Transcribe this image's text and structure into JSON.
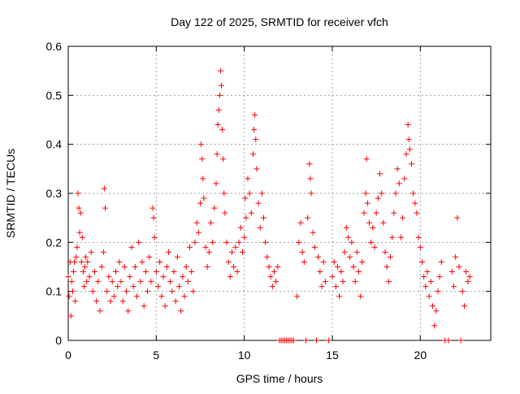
{
  "chart_data": {
    "type": "scatter",
    "title": "Day 122 of 2025, SRMTID for receiver vfch",
    "xlabel": "GPS time / hours",
    "ylabel": "SRMTID / TECUs",
    "xlim": [
      0,
      24
    ],
    "ylim": [
      0,
      0.6
    ],
    "xticks": [
      0,
      5,
      10,
      15,
      20
    ],
    "yticks": [
      0,
      0.1,
      0.2,
      0.3,
      0.4,
      0.5,
      0.6
    ],
    "grid": true,
    "marker": "+",
    "color": "#ff0000",
    "series": [
      {
        "name": "SRMTID",
        "points": [
          [
            0.0,
            0.13
          ],
          [
            0.05,
            0.09
          ],
          [
            0.1,
            0.16
          ],
          [
            0.15,
            0.05
          ],
          [
            0.2,
            0.12
          ],
          [
            0.25,
            0.1
          ],
          [
            0.3,
            0.14
          ],
          [
            0.35,
            0.16
          ],
          [
            0.4,
            0.08
          ],
          [
            0.45,
            0.17
          ],
          [
            0.5,
            0.19
          ],
          [
            0.55,
            0.3
          ],
          [
            0.6,
            0.27
          ],
          [
            0.65,
            0.22
          ],
          [
            0.7,
            0.26
          ],
          [
            0.75,
            0.16
          ],
          [
            0.8,
            0.21
          ],
          [
            0.85,
            0.14
          ],
          [
            0.9,
            0.11
          ],
          [
            0.95,
            0.15
          ],
          [
            1.0,
            0.17
          ],
          [
            1.05,
            0.12
          ],
          [
            1.1,
            0.16
          ],
          [
            1.2,
            0.13
          ],
          [
            1.3,
            0.18
          ],
          [
            1.4,
            0.1
          ],
          [
            1.5,
            0.14
          ],
          [
            1.6,
            0.08
          ],
          [
            1.7,
            0.12
          ],
          [
            1.8,
            0.06
          ],
          [
            1.9,
            0.15
          ],
          [
            2.0,
            0.18
          ],
          [
            2.05,
            0.31
          ],
          [
            2.1,
            0.27
          ],
          [
            2.2,
            0.1
          ],
          [
            2.3,
            0.13
          ],
          [
            2.4,
            0.08
          ],
          [
            2.5,
            0.12
          ],
          [
            2.6,
            0.09
          ],
          [
            2.7,
            0.14
          ],
          [
            2.8,
            0.11
          ],
          [
            2.9,
            0.16
          ],
          [
            3.0,
            0.12
          ],
          [
            3.1,
            0.08
          ],
          [
            3.2,
            0.15
          ],
          [
            3.3,
            0.1
          ],
          [
            3.4,
            0.06
          ],
          [
            3.5,
            0.13
          ],
          [
            3.6,
            0.19
          ],
          [
            3.7,
            0.11
          ],
          [
            3.8,
            0.15
          ],
          [
            3.9,
            0.09
          ],
          [
            4.0,
            0.2
          ],
          [
            4.1,
            0.12
          ],
          [
            4.2,
            0.16
          ],
          [
            4.3,
            0.07
          ],
          [
            4.4,
            0.14
          ],
          [
            4.5,
            0.1
          ],
          [
            4.6,
            0.17
          ],
          [
            4.7,
            0.12
          ],
          [
            4.8,
            0.27
          ],
          [
            4.85,
            0.25
          ],
          [
            4.9,
            0.21
          ],
          [
            5.0,
            0.14
          ],
          [
            5.1,
            0.11
          ],
          [
            5.2,
            0.16
          ],
          [
            5.3,
            0.09
          ],
          [
            5.4,
            0.13
          ],
          [
            5.5,
            0.07
          ],
          [
            5.6,
            0.15
          ],
          [
            5.7,
            0.18
          ],
          [
            5.8,
            0.12
          ],
          [
            5.9,
            0.1
          ],
          [
            6.0,
            0.14
          ],
          [
            6.1,
            0.08
          ],
          [
            6.2,
            0.17
          ],
          [
            6.3,
            0.11
          ],
          [
            6.4,
            0.06
          ],
          [
            6.5,
            0.13
          ],
          [
            6.6,
            0.09
          ],
          [
            6.7,
            0.15
          ],
          [
            6.8,
            0.12
          ],
          [
            6.9,
            0.19
          ],
          [
            7.0,
            0.14
          ],
          [
            7.1,
            0.1
          ],
          [
            7.2,
            0.2
          ],
          [
            7.3,
            0.24
          ],
          [
            7.4,
            0.22
          ],
          [
            7.5,
            0.28
          ],
          [
            7.55,
            0.4
          ],
          [
            7.6,
            0.37
          ],
          [
            7.65,
            0.33
          ],
          [
            7.7,
            0.29
          ],
          [
            7.8,
            0.19
          ],
          [
            7.9,
            0.15
          ],
          [
            8.0,
            0.18
          ],
          [
            8.1,
            0.24
          ],
          [
            8.2,
            0.2
          ],
          [
            8.3,
            0.27
          ],
          [
            8.4,
            0.32
          ],
          [
            8.45,
            0.38
          ],
          [
            8.5,
            0.44
          ],
          [
            8.55,
            0.47
          ],
          [
            8.6,
            0.5
          ],
          [
            8.65,
            0.55
          ],
          [
            8.7,
            0.52
          ],
          [
            8.75,
            0.43
          ],
          [
            8.8,
            0.37
          ],
          [
            8.85,
            0.3
          ],
          [
            8.9,
            0.26
          ],
          [
            9.0,
            0.2
          ],
          [
            9.1,
            0.16
          ],
          [
            9.2,
            0.13
          ],
          [
            9.3,
            0.18
          ],
          [
            9.4,
            0.15
          ],
          [
            9.5,
            0.19
          ],
          [
            9.6,
            0.14
          ],
          [
            9.7,
            0.2
          ],
          [
            9.8,
            0.23
          ],
          [
            9.9,
            0.18
          ],
          [
            10.0,
            0.21
          ],
          [
            10.05,
            0.29
          ],
          [
            10.1,
            0.25
          ],
          [
            10.2,
            0.33
          ],
          [
            10.3,
            0.3
          ],
          [
            10.4,
            0.26
          ],
          [
            10.5,
            0.38
          ],
          [
            10.55,
            0.43
          ],
          [
            10.6,
            0.46
          ],
          [
            10.65,
            0.41
          ],
          [
            10.7,
            0.35
          ],
          [
            10.8,
            0.28
          ],
          [
            10.9,
            0.23
          ],
          [
            11.0,
            0.3
          ],
          [
            11.1,
            0.25
          ],
          [
            11.2,
            0.2
          ],
          [
            11.3,
            0.17
          ],
          [
            11.4,
            0.15
          ],
          [
            11.5,
            0.13
          ],
          [
            11.6,
            0.11
          ],
          [
            11.7,
            0.14
          ],
          [
            11.8,
            0.12
          ],
          [
            11.9,
            0.15
          ],
          [
            12.0,
            0.0
          ],
          [
            12.1,
            0.0
          ],
          [
            12.2,
            0.0
          ],
          [
            12.3,
            0.0
          ],
          [
            12.4,
            0.0
          ],
          [
            12.5,
            0.0
          ],
          [
            12.6,
            0.0
          ],
          [
            12.7,
            0.0
          ],
          [
            12.8,
            0.0
          ],
          [
            13.0,
            0.09
          ],
          [
            13.1,
            0.2
          ],
          [
            13.2,
            0.24
          ],
          [
            13.3,
            0.18
          ],
          [
            13.4,
            0.16
          ],
          [
            13.5,
            0.0
          ],
          [
            13.6,
            0.25
          ],
          [
            13.7,
            0.36
          ],
          [
            13.75,
            0.33
          ],
          [
            13.8,
            0.3
          ],
          [
            13.9,
            0.22
          ],
          [
            14.0,
            0.19
          ],
          [
            14.1,
            0.0
          ],
          [
            14.2,
            0.17
          ],
          [
            14.3,
            0.14
          ],
          [
            14.4,
            0.11
          ],
          [
            14.5,
            0.16
          ],
          [
            14.6,
            0.12
          ],
          [
            14.8,
            0.0
          ],
          [
            15.0,
            0.13
          ],
          [
            15.1,
            0.16
          ],
          [
            15.2,
            0.11
          ],
          [
            15.3,
            0.15
          ],
          [
            15.4,
            0.09
          ],
          [
            15.5,
            0.14
          ],
          [
            15.6,
            0.12
          ],
          [
            15.7,
            0.18
          ],
          [
            15.8,
            0.23
          ],
          [
            15.9,
            0.21
          ],
          [
            16.0,
            0.17
          ],
          [
            16.1,
            0.2
          ],
          [
            16.2,
            0.15
          ],
          [
            16.3,
            0.12
          ],
          [
            16.4,
            0.18
          ],
          [
            16.5,
            0.14
          ],
          [
            16.6,
            0.09
          ],
          [
            16.7,
            0.16
          ],
          [
            16.8,
            0.26
          ],
          [
            16.9,
            0.3
          ],
          [
            16.95,
            0.37
          ],
          [
            17.0,
            0.28
          ],
          [
            17.1,
            0.24
          ],
          [
            17.2,
            0.2
          ],
          [
            17.3,
            0.23
          ],
          [
            17.4,
            0.19
          ],
          [
            17.5,
            0.26
          ],
          [
            17.6,
            0.29
          ],
          [
            17.7,
            0.34
          ],
          [
            17.8,
            0.3
          ],
          [
            17.9,
            0.24
          ],
          [
            18.0,
            0.18
          ],
          [
            18.1,
            0.15
          ],
          [
            18.2,
            0.12
          ],
          [
            18.3,
            0.17
          ],
          [
            18.4,
            0.21
          ],
          [
            18.5,
            0.26
          ],
          [
            18.6,
            0.3
          ],
          [
            18.7,
            0.35
          ],
          [
            18.8,
            0.32
          ],
          [
            18.9,
            0.21
          ],
          [
            19.0,
            0.25
          ],
          [
            19.1,
            0.33
          ],
          [
            19.2,
            0.38
          ],
          [
            19.3,
            0.44
          ],
          [
            19.35,
            0.41
          ],
          [
            19.4,
            0.39
          ],
          [
            19.5,
            0.36
          ],
          [
            19.6,
            0.3
          ],
          [
            19.7,
            0.28
          ],
          [
            19.8,
            0.26
          ],
          [
            19.9,
            0.21
          ],
          [
            20.0,
            0.19
          ],
          [
            20.1,
            0.16
          ],
          [
            20.2,
            0.13
          ],
          [
            20.3,
            0.11
          ],
          [
            20.4,
            0.14
          ],
          [
            20.5,
            0.09
          ],
          [
            20.6,
            0.12
          ],
          [
            20.7,
            0.07
          ],
          [
            20.8,
            0.03
          ],
          [
            20.9,
            0.06
          ],
          [
            21.0,
            0.1
          ],
          [
            21.1,
            0.13
          ],
          [
            21.2,
            0.16
          ],
          [
            21.4,
            0.0
          ],
          [
            21.6,
            0.0
          ],
          [
            21.8,
            0.14
          ],
          [
            21.9,
            0.11
          ],
          [
            22.0,
            0.17
          ],
          [
            22.1,
            0.25
          ],
          [
            22.2,
            0.15
          ],
          [
            22.3,
            0.0
          ],
          [
            22.4,
            0.1
          ],
          [
            22.5,
            0.07
          ],
          [
            22.6,
            0.14
          ],
          [
            22.7,
            0.12
          ],
          [
            22.8,
            0.13
          ]
        ]
      }
    ]
  }
}
